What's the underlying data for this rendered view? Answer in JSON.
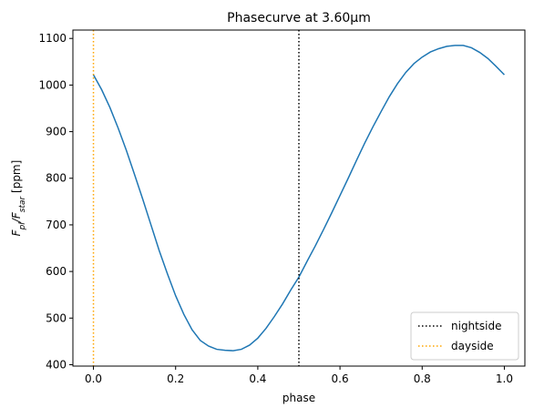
{
  "chart_data": {
    "type": "line",
    "title": "Phasecurve at 3.60μm",
    "xlabel": "phase",
    "ylabel": [
      {
        "text": "F"
      },
      {
        "text": "pl",
        "sub": true
      },
      {
        "text": "/F"
      },
      {
        "text": "star",
        "sub": true
      },
      {
        "text": " [ppm]"
      }
    ],
    "x": [
      0,
      0.02,
      0.04,
      0.06,
      0.08,
      0.1,
      0.12,
      0.14,
      0.16,
      0.18,
      0.2,
      0.22,
      0.24,
      0.26,
      0.28,
      0.3,
      0.32,
      0.34,
      0.36,
      0.38,
      0.4,
      0.42,
      0.44,
      0.46,
      0.48,
      0.5,
      0.52,
      0.54,
      0.56,
      0.58,
      0.6,
      0.62,
      0.64,
      0.66,
      0.68,
      0.7,
      0.72,
      0.74,
      0.76,
      0.78,
      0.8,
      0.82,
      0.84,
      0.86,
      0.88,
      0.9,
      0.92,
      0.94,
      0.96,
      0.98,
      1
    ],
    "series": [
      {
        "color": "#1f77b4",
        "values": [
          1022,
          990,
          952,
          908,
          860,
          808,
          755,
          700,
          645,
          595,
          548,
          508,
          475,
          452,
          440,
          433,
          431,
          430,
          433,
          442,
          457,
          478,
          503,
          530,
          560,
          588,
          622,
          655,
          690,
          726,
          763,
          800,
          838,
          875,
          910,
          943,
          975,
          1003,
          1027,
          1046,
          1060,
          1071,
          1078,
          1083,
          1085,
          1085,
          1080,
          1070,
          1057,
          1040,
          1022
        ]
      }
    ],
    "vlines": [
      {
        "x": 0.5,
        "color": "#000000",
        "name": "nightside"
      },
      {
        "x": 0,
        "color": "#ffa500",
        "name": "dayside"
      }
    ],
    "xlim": [
      -0.05,
      1.05
    ],
    "ylim": [
      397,
      1118
    ],
    "xticks": [
      {
        "value": 0,
        "label": "0.0"
      },
      0.2,
      0.4,
      0.6,
      0.8,
      {
        "value": 1,
        "label": "1.0"
      }
    ],
    "yticks": [
      400,
      500,
      600,
      700,
      800,
      900,
      1000,
      1100
    ],
    "legend": "lower right"
  }
}
